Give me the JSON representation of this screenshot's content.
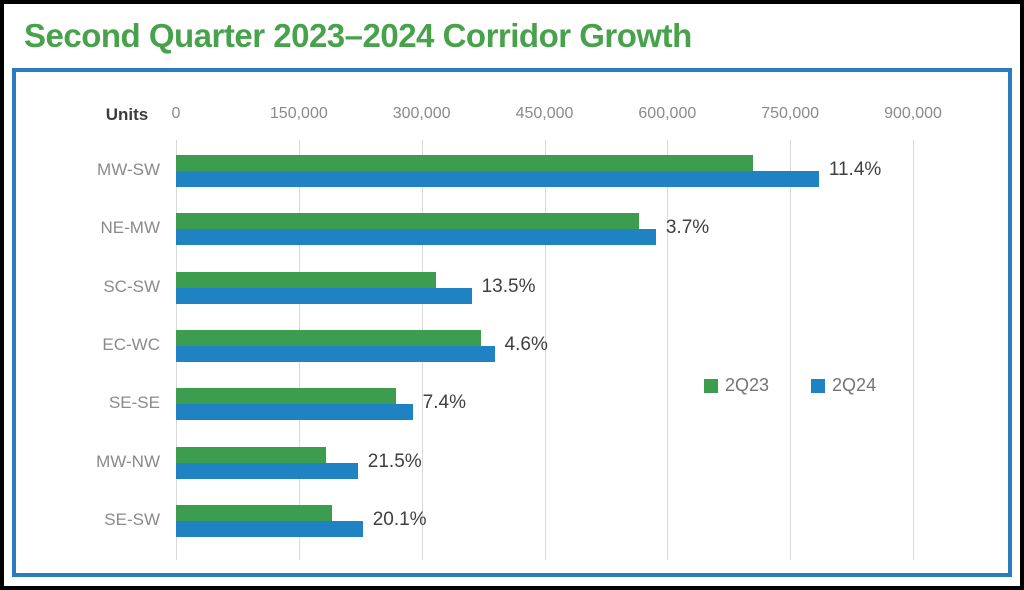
{
  "window": {
    "title": "Second Quarter 2023–2024 Corridor Growth"
  },
  "chart_data": {
    "type": "bar",
    "orientation": "horizontal",
    "title": "Second Quarter 2023–2024 Corridor Growth",
    "units_label": "Units",
    "categories": [
      "MW-SW",
      "NE-MW",
      "SC-SW",
      "EC-WC",
      "SE-SE",
      "MW-NW",
      "SE-SW"
    ],
    "series": [
      {
        "name": "2Q23",
        "color": "#3C9D4E",
        "values": [
          705000,
          565000,
          318000,
          372000,
          269000,
          183000,
          190000
        ]
      },
      {
        "name": "2Q24",
        "color": "#1F82C3",
        "values": [
          785000,
          586000,
          361000,
          389000,
          289000,
          222000,
          228000
        ]
      }
    ],
    "growth_labels": [
      "11.4%",
      "3.7%",
      "13.5%",
      "4.6%",
      "7.4%",
      "21.5%",
      "20.1%"
    ],
    "x_axis": {
      "min": 0,
      "max": 900000,
      "ticks": [
        0,
        150000,
        300000,
        450000,
        600000,
        750000,
        900000
      ],
      "tick_labels": [
        "0",
        "150,000",
        "300,000",
        "450,000",
        "600,000",
        "750,000",
        "900,000"
      ]
    },
    "grid": true,
    "legend_position": "inside-right"
  },
  "colors": {
    "title": "#47A24B",
    "outer_border": "#000000",
    "panel_border": "#2B7CBF",
    "gridline": "#D9D9D9",
    "axis_text": "#8A8A8A",
    "row_label": "#8A8A8A",
    "pct_label": "#3F3F3F",
    "legend_text": "#757575"
  }
}
